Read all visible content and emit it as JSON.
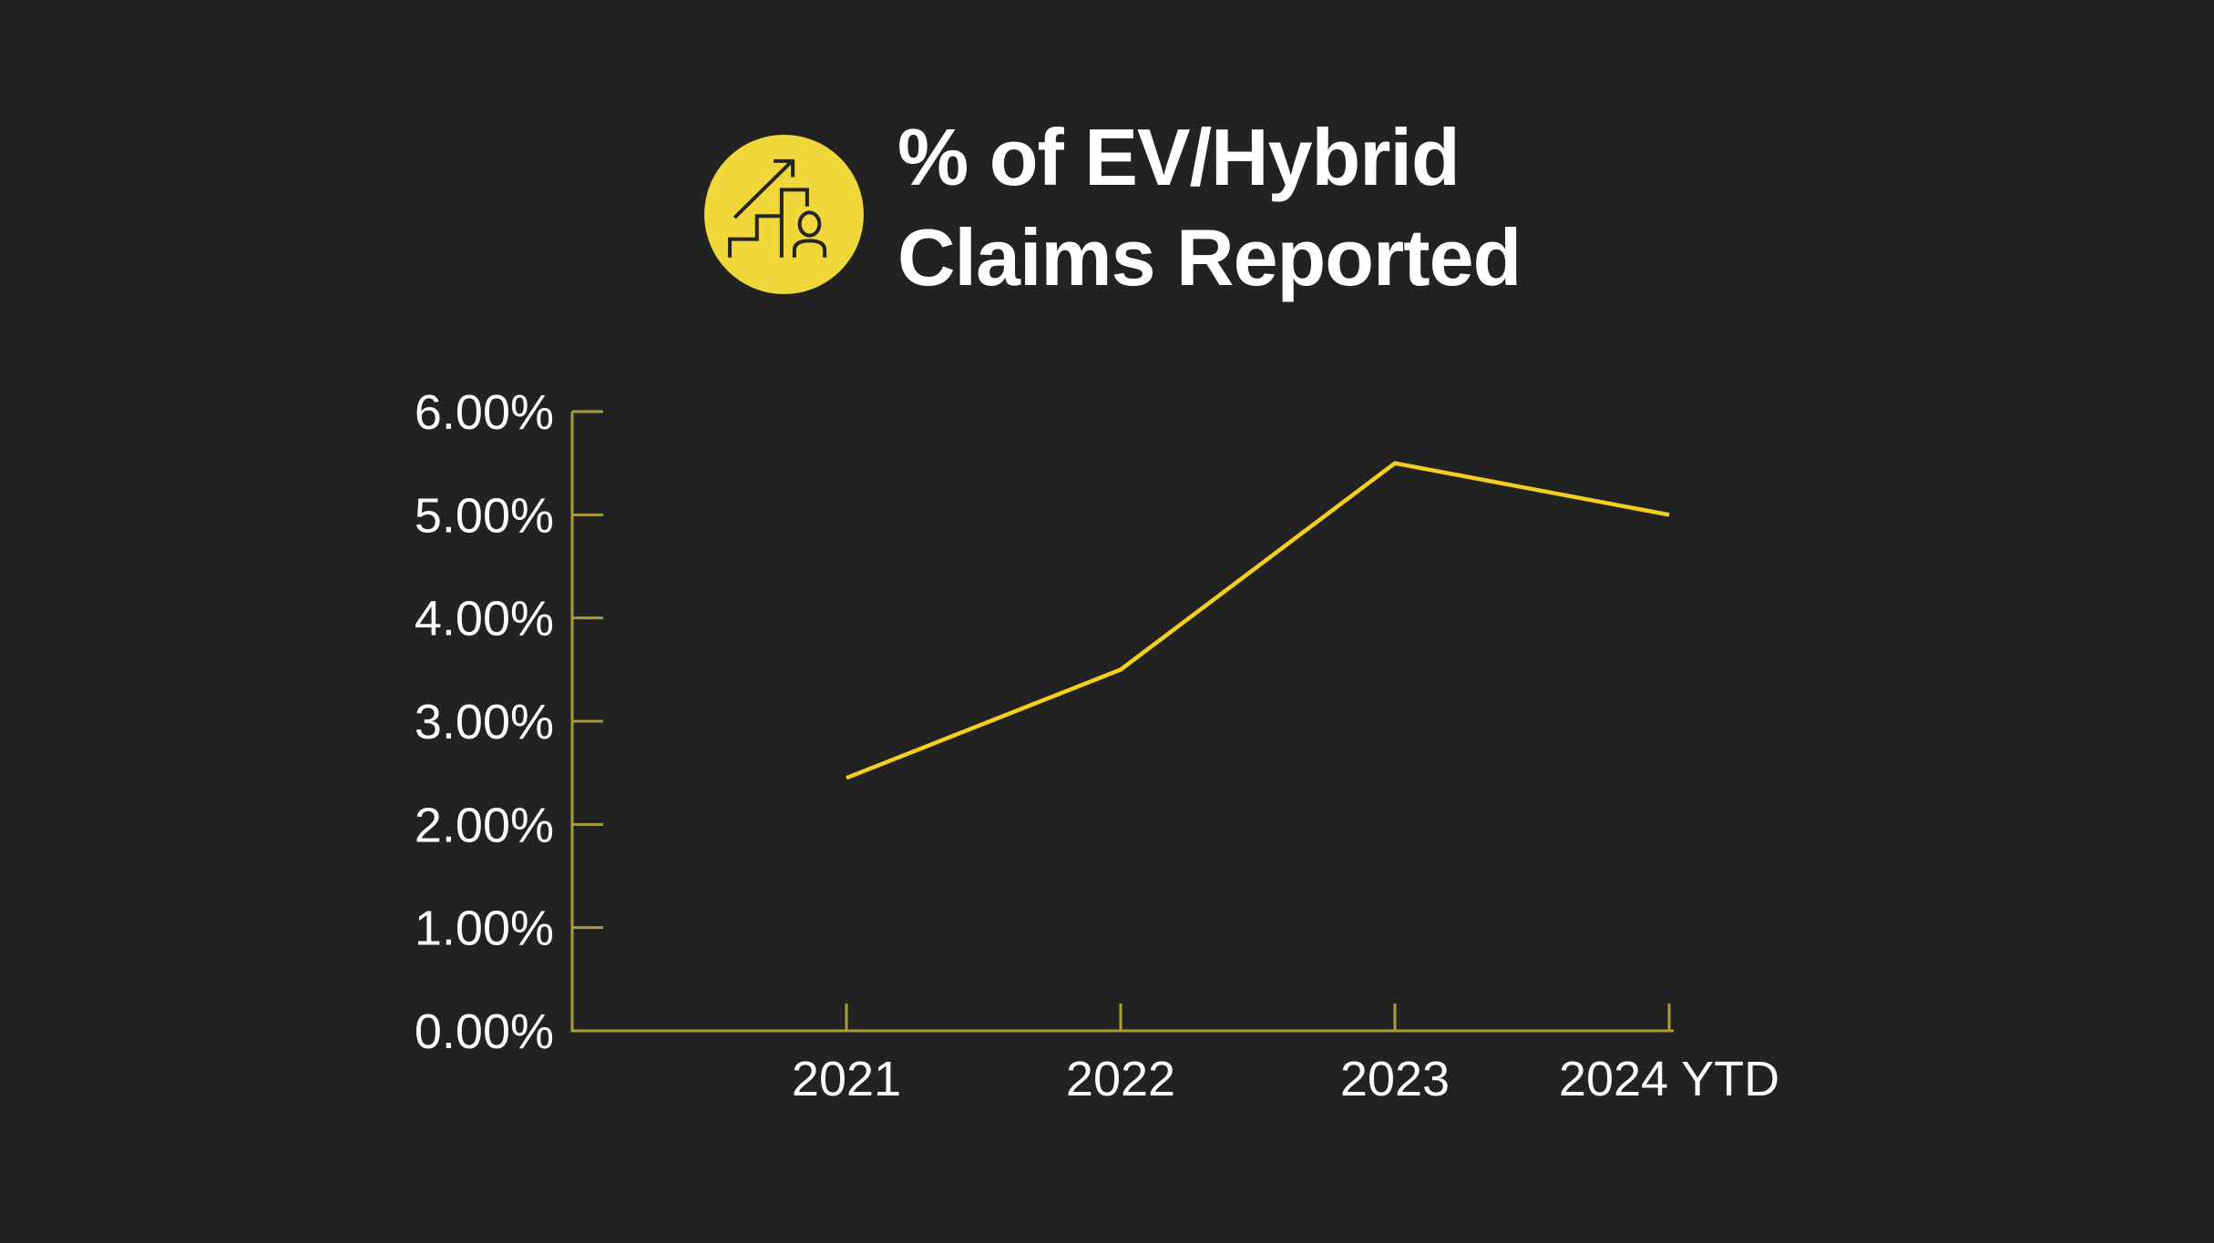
{
  "header": {
    "title_line1": "% of EV/Hybrid",
    "title_line2": "Claims Reported",
    "icon": "growth-bar-chart-person-icon"
  },
  "colors": {
    "bg": "#232222",
    "title": "#ffffff",
    "tick": "#fdfdfd",
    "axis": "#a89c3b",
    "line": "#f3cf20",
    "icon-fill": "#f0d73a",
    "icon-stroke": "#242424"
  },
  "chart_data": {
    "type": "line",
    "title": "% of EV/Hybrid Claims Reported",
    "categories": [
      "2021",
      "2022",
      "2023",
      "2024 YTD"
    ],
    "values": [
      2.45,
      3.5,
      5.5,
      5.0
    ],
    "unit": "percent",
    "ylim": [
      0,
      6
    ],
    "ytick_step": 1,
    "ytick_labels": [
      "0.00%",
      "1.00%",
      "2.00%",
      "3.00%",
      "4.00%",
      "5.00%",
      "6.00%"
    ],
    "xlabel": "",
    "ylabel": "",
    "grid": false,
    "legend": false,
    "line_color": "#f3cf20",
    "axis_color": "#a89c3b",
    "background_color": "#232222"
  }
}
